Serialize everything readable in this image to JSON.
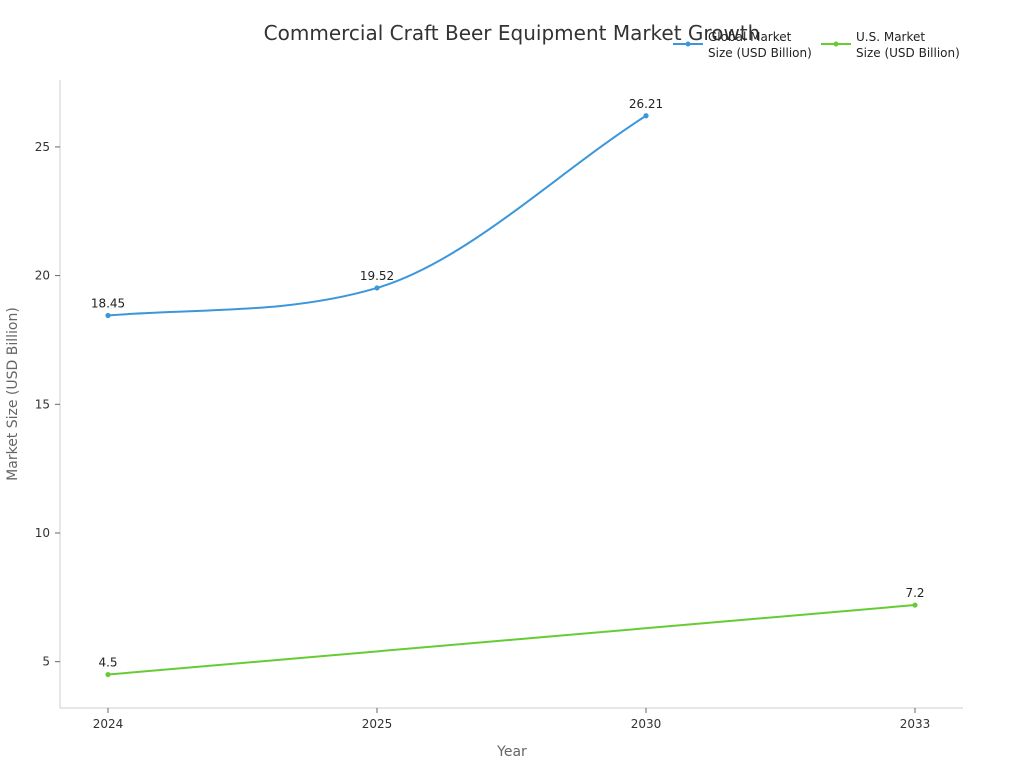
{
  "chart_data": {
    "type": "line",
    "title": "Commercial Craft Beer Equipment Market Growth",
    "xlabel": "Year",
    "ylabel": "Market Size (USD Billion)",
    "categories": [
      "2024",
      "2025",
      "2030",
      "2033"
    ],
    "ylim": [
      3.2,
      27.6
    ],
    "yticks": [
      5,
      10,
      15,
      20,
      25
    ],
    "grid": false,
    "legend_position": "top-right",
    "series": [
      {
        "name": "Global Market Size (USD Billion)",
        "legend_lines": [
          "Global Market",
          "Size (USD Billion)"
        ],
        "color": "#3b97dc",
        "smooth": true,
        "values": [
          18.45,
          19.52,
          26.21,
          null
        ]
      },
      {
        "name": "U.S. Market Size (USD Billion)",
        "legend_lines": [
          "U.S. Market",
          "Size (USD Billion)"
        ],
        "color": "#66cc33",
        "smooth": false,
        "values": [
          4.5,
          null,
          null,
          7.2
        ]
      }
    ]
  }
}
